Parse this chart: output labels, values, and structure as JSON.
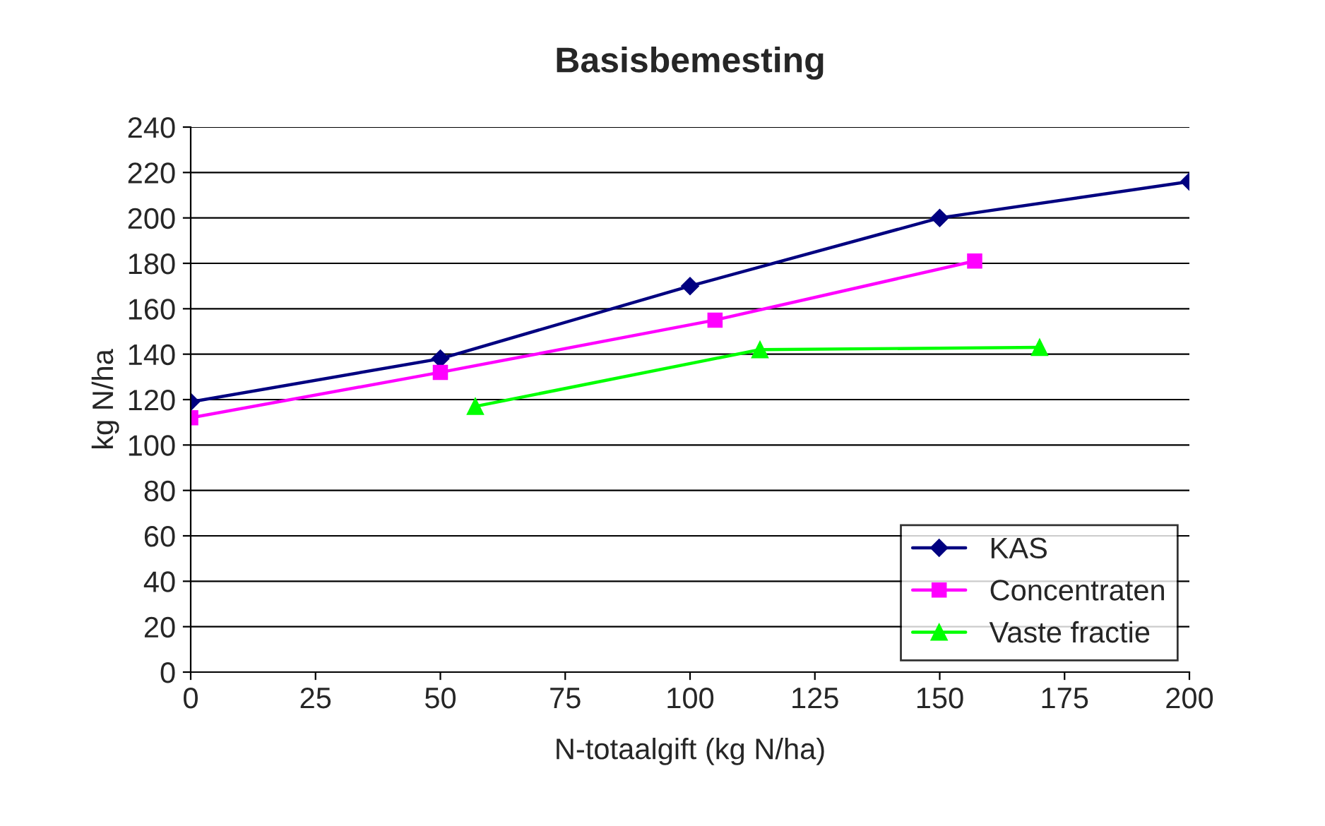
{
  "chart_data": {
    "type": "line",
    "title": "Basisbemesting",
    "xlabel": "N-totaalgift (kg N/ha)",
    "ylabel": "kg N/ha",
    "series": [
      {
        "name": "KAS",
        "color": "#000080",
        "marker": "diamond",
        "x": [
          0,
          50,
          100,
          150,
          200
        ],
        "values": [
          119,
          138,
          170,
          200,
          216
        ]
      },
      {
        "name": "Concentraten",
        "color": "#ff00ff",
        "marker": "square",
        "x": [
          0,
          50,
          105,
          157
        ],
        "values": [
          112,
          132,
          155,
          181
        ]
      },
      {
        "name": "Vaste fractie",
        "color": "#00ff00",
        "marker": "triangle",
        "x": [
          57,
          114,
          170
        ],
        "values": [
          117,
          142,
          143
        ]
      }
    ],
    "xlim": [
      0,
      200
    ],
    "xticks": [
      0,
      25,
      50,
      75,
      100,
      125,
      150,
      175,
      200
    ],
    "ylim": [
      0,
      240
    ],
    "yticks": [
      0,
      20,
      40,
      60,
      80,
      100,
      120,
      140,
      160,
      180,
      200,
      220,
      240
    ],
    "grid": "y",
    "legend": "bottom right",
    "line_style": "solid"
  }
}
